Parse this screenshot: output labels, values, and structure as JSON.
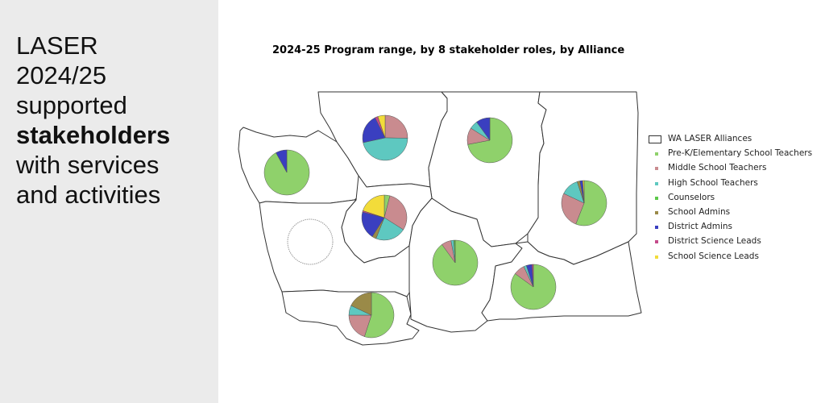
{
  "headline": {
    "line1": "LASER",
    "line2": "2024/25",
    "line3": "supported",
    "line4_bold": "stakeholders",
    "line5": "with services",
    "line6": "and activities"
  },
  "map": {
    "title": "2024-25 Program range, by 8 stakeholder roles, by Alliance",
    "legend_header": "WA LASER Alliances",
    "roles": [
      {
        "label": "Pre-K/Elementary School Teachers",
        "color": "#8fd16b"
      },
      {
        "label": "Middle School Teachers",
        "color": "#c98b8f"
      },
      {
        "label": "High School Teachers",
        "color": "#5ec8c0"
      },
      {
        "label": "Counselors",
        "color": "#5cc84a"
      },
      {
        "label": "School Admins",
        "color": "#9a8a48"
      },
      {
        "label": "District Admins",
        "color": "#3a3fc0"
      },
      {
        "label": "District Science Leads",
        "color": "#c44a8a"
      },
      {
        "label": "School Science Leads",
        "color": "#f2dc3a"
      }
    ],
    "alliances": [
      {
        "id": "northwest",
        "values": [
          0.92,
          0,
          0,
          0,
          0,
          0.08,
          0,
          0
        ]
      },
      {
        "id": "north-central",
        "values": [
          0,
          0.24,
          0.44,
          0,
          0,
          0.2,
          0.02,
          0.05
        ]
      },
      {
        "id": "northeast-north",
        "values": [
          0.72,
          0.12,
          0.06,
          0,
          0,
          0.1,
          0,
          0
        ]
      },
      {
        "id": "northeast",
        "values": [
          0.56,
          0.26,
          0.13,
          0,
          0.02,
          0.02,
          0,
          0.01
        ]
      },
      {
        "id": "central",
        "values": [
          0.04,
          0.3,
          0.22,
          0,
          0.03,
          0.2,
          0.01,
          0.2
        ]
      },
      {
        "id": "southwest",
        "values": [
          0.55,
          0.2,
          0.07,
          0,
          0.18,
          0,
          0,
          0
        ]
      },
      {
        "id": "south-central",
        "values": [
          0.9,
          0.07,
          0.02,
          0.01,
          0,
          0,
          0,
          0
        ]
      },
      {
        "id": "southeast",
        "values": [
          0.85,
          0.08,
          0.02,
          0,
          0,
          0.04,
          0.01,
          0
        ]
      },
      {
        "id": "west",
        "values": []
      }
    ]
  }
}
